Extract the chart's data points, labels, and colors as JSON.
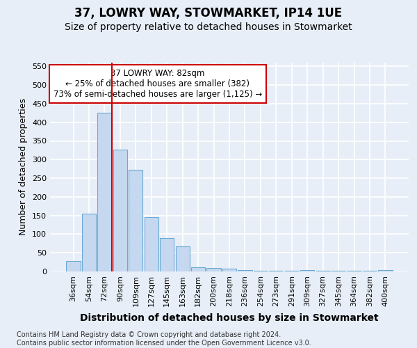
{
  "title": "37, LOWRY WAY, STOWMARKET, IP14 1UE",
  "subtitle": "Size of property relative to detached houses in Stowmarket",
  "xlabel": "Distribution of detached houses by size in Stowmarket",
  "ylabel": "Number of detached properties",
  "categories": [
    "36sqm",
    "54sqm",
    "72sqm",
    "90sqm",
    "109sqm",
    "127sqm",
    "145sqm",
    "163sqm",
    "182sqm",
    "200sqm",
    "218sqm",
    "236sqm",
    "254sqm",
    "273sqm",
    "291sqm",
    "309sqm",
    "327sqm",
    "345sqm",
    "364sqm",
    "382sqm",
    "400sqm"
  ],
  "values": [
    28,
    155,
    425,
    327,
    272,
    145,
    90,
    67,
    12,
    10,
    7,
    3,
    2,
    2,
    2,
    3,
    1,
    1,
    1,
    1,
    3
  ],
  "bar_color": "#c5d8ef",
  "bar_edge_color": "#6aaad4",
  "vline_x_index": 2,
  "vline_color": "#cc0000",
  "annotation_line1": "37 LOWRY WAY: 82sqm",
  "annotation_line2": "← 25% of detached houses are smaller (382)",
  "annotation_line3": "73% of semi-detached houses are larger (1,125) →",
  "annotation_box_color": "#ffffff",
  "annotation_box_edge_color": "#cc0000",
  "ylim": [
    0,
    560
  ],
  "yticks": [
    0,
    50,
    100,
    150,
    200,
    250,
    300,
    350,
    400,
    450,
    500,
    550
  ],
  "bg_color": "#e8eef7",
  "plot_bg_color": "#e8eef7",
  "grid_color": "#ffffff",
  "footer": "Contains HM Land Registry data © Crown copyright and database right 2024.\nContains public sector information licensed under the Open Government Licence v3.0.",
  "title_fontsize": 12,
  "subtitle_fontsize": 10,
  "xlabel_fontsize": 10,
  "ylabel_fontsize": 9,
  "tick_fontsize": 8,
  "annotation_fontsize": 8.5,
  "footer_fontsize": 7
}
